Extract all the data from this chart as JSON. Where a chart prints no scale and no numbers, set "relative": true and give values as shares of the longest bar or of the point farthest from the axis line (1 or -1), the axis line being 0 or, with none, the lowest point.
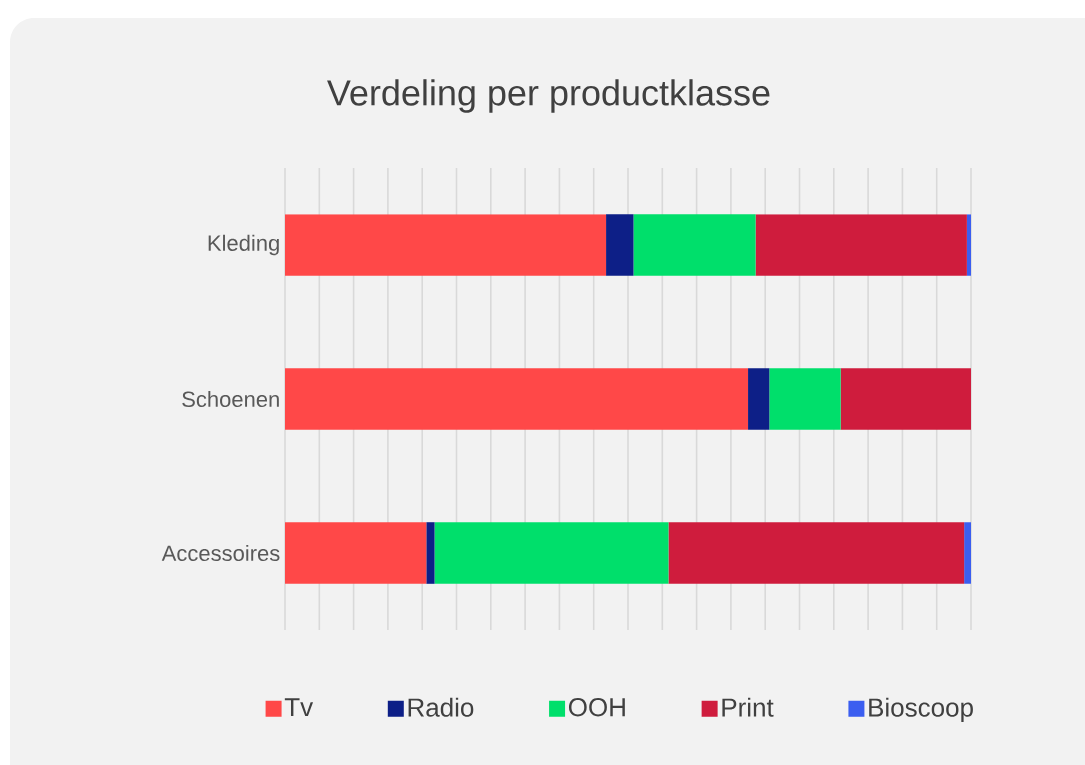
{
  "chart_data": {
    "type": "bar",
    "title": "Verdeling per productklasse",
    "orientation": "horizontal",
    "stacked": true,
    "relative": true,
    "grid": true,
    "legend": "bottom",
    "categories": [
      "Kleding",
      "Schoenen",
      "Accessoires"
    ],
    "series": [
      {
        "name": "Tv",
        "color": "#ff4848",
        "values": [
          0.468,
          0.675,
          0.206
        ]
      },
      {
        "name": "Radio",
        "color": "#0d1f87",
        "values": [
          0.04,
          0.031,
          0.012
        ]
      },
      {
        "name": "OOH",
        "color": "#00df6b",
        "values": [
          0.178,
          0.104,
          0.341
        ]
      },
      {
        "name": "Print",
        "color": "#cf1c3d",
        "values": [
          0.308,
          0.19,
          0.431
        ]
      },
      {
        "name": "Bioscoop",
        "color": "#3b5ef0",
        "values": [
          0.006,
          0.0,
          0.01
        ]
      }
    ]
  }
}
